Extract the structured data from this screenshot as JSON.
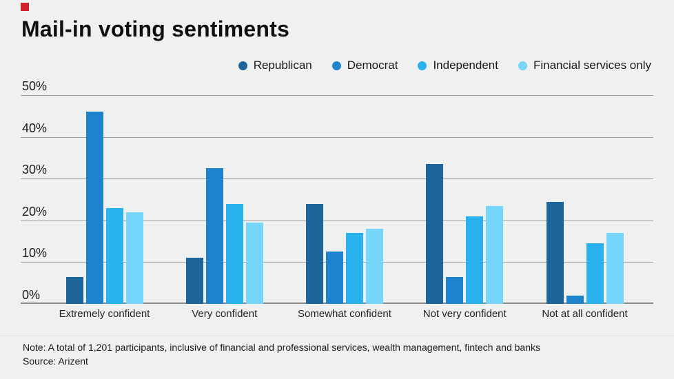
{
  "brand": {
    "mark_color": "#d0222c"
  },
  "header": {
    "title": "Mail-in voting sentiments"
  },
  "chart_data": {
    "type": "bar",
    "title": "Mail-in voting sentiments",
    "categories": [
      "Extremely confident",
      "Very confident",
      "Somewhat confident",
      "Not very confident",
      "Not at all confident"
    ],
    "series": [
      {
        "name": "Republican",
        "color": "#1e659b",
        "values": [
          6.5,
          11,
          24,
          33.5,
          24.5
        ]
      },
      {
        "name": "Democrat",
        "color": "#1e83cc",
        "values": [
          46,
          32.5,
          12.5,
          6.5,
          2
        ]
      },
      {
        "name": "Independent",
        "color": "#29b2ee",
        "values": [
          23,
          24,
          17,
          21,
          14.5
        ]
      },
      {
        "name": "Financial services only",
        "color": "#76d5fb",
        "values": [
          22,
          19.5,
          18,
          23.5,
          17
        ]
      }
    ],
    "xlabel": "",
    "ylabel": "",
    "ylim": [
      0,
      50
    ],
    "yticks": [
      "50%",
      "40%",
      "30%",
      "20%",
      "10%",
      "0%"
    ],
    "grid": true,
    "legend_position": "top-right",
    "background_color": "#eff1f0",
    "gridline_color": "#9c9c9c"
  },
  "footer": {
    "note": "Note: A total of 1,201 participants, inclusive of financial and professional services, wealth management, fintech and banks",
    "source": "Source: Arizent"
  }
}
